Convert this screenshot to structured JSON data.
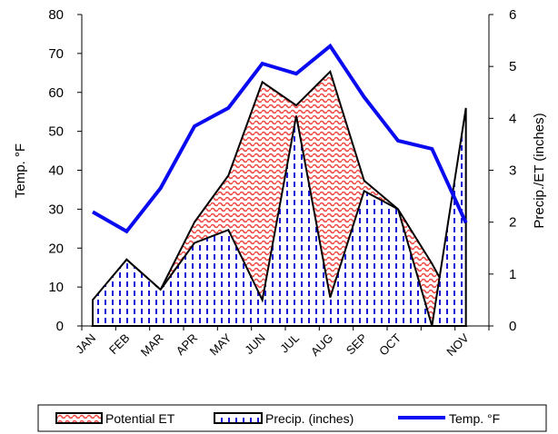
{
  "chart_data": {
    "type": "area+line",
    "categories": [
      "JAN",
      "FEB",
      "MAR",
      "APR",
      "MAY",
      "JUN",
      "JUL",
      "AUG",
      "SEP",
      "OCT",
      "",
      "NOV"
    ],
    "left_axis": {
      "label": "Temp. °F",
      "ylim": [
        0,
        80
      ],
      "ticks": [
        0,
        10,
        20,
        30,
        40,
        50,
        60,
        70,
        80
      ]
    },
    "right_axis": {
      "label": "Precip./ET (inches)",
      "ylim": [
        0,
        6
      ],
      "ticks": [
        0,
        1,
        2,
        3,
        4,
        5,
        6
      ]
    },
    "series": [
      {
        "name": "Potential ET",
        "axis": "right",
        "kind": "area",
        "color": "#e8403a",
        "values": [
          0.0,
          1.28,
          0.7,
          2.0,
          2.9,
          4.7,
          4.25,
          4.9,
          2.8,
          2.25,
          1.2,
          0.0
        ]
      },
      {
        "name": "Precip. (inches)",
        "axis": "right",
        "kind": "area",
        "color": "#1a1ad6",
        "values": [
          0.5,
          1.28,
          0.7,
          1.6,
          1.85,
          0.5,
          4.05,
          0.55,
          2.6,
          2.25,
          0.0,
          4.2
        ]
      },
      {
        "name": "Temp. °F",
        "axis": "left",
        "kind": "line",
        "color": "#0a0af0",
        "values": [
          29.3,
          24.3,
          35.4,
          51.3,
          56.0,
          67.4,
          64.8,
          71.9,
          58.8,
          47.6,
          45.5,
          26.5
        ]
      }
    ],
    "legend_position": "bottom",
    "grid": false
  }
}
